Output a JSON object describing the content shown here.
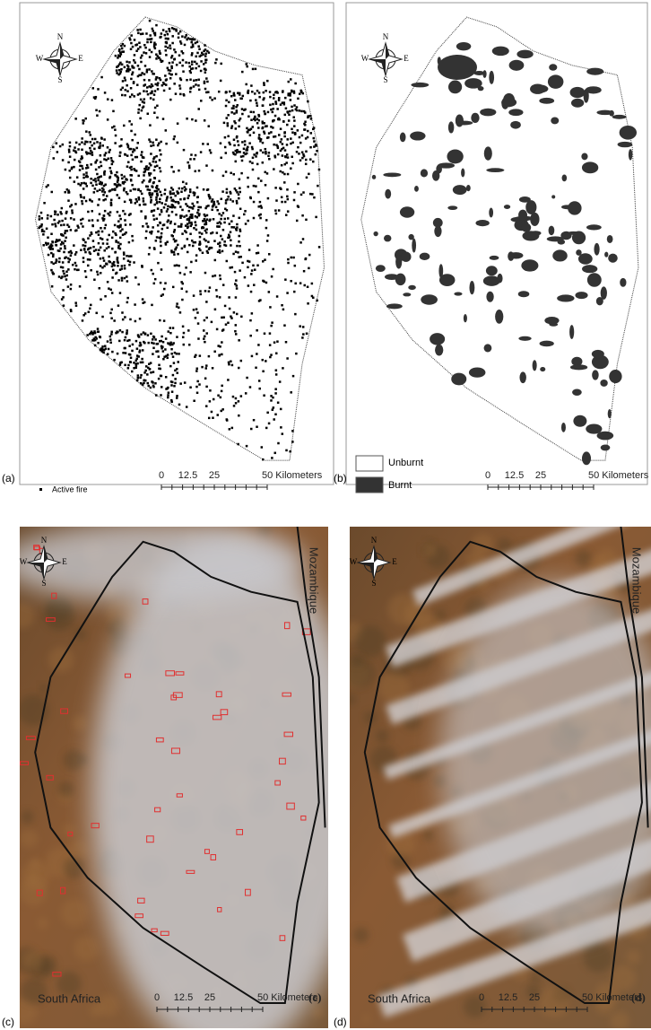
{
  "compass": {
    "n": "N",
    "s": "S",
    "e": "E",
    "w": "W"
  },
  "panels": [
    {
      "label": "(a)",
      "legend": [
        "Active fire"
      ]
    },
    {
      "label": "(b)",
      "legend": [
        "Unburnt",
        "Burnt"
      ]
    },
    {
      "label": "(c)",
      "inner_label": "(c)"
    },
    {
      "label": "(d)",
      "inner_label": "(d)"
    }
  ],
  "scale_bar": {
    "ticks": [
      0,
      12.5,
      25
    ],
    "end_label": "50 Kilometers"
  },
  "countries": {
    "east": "Mozambique",
    "south": "South Africa"
  }
}
